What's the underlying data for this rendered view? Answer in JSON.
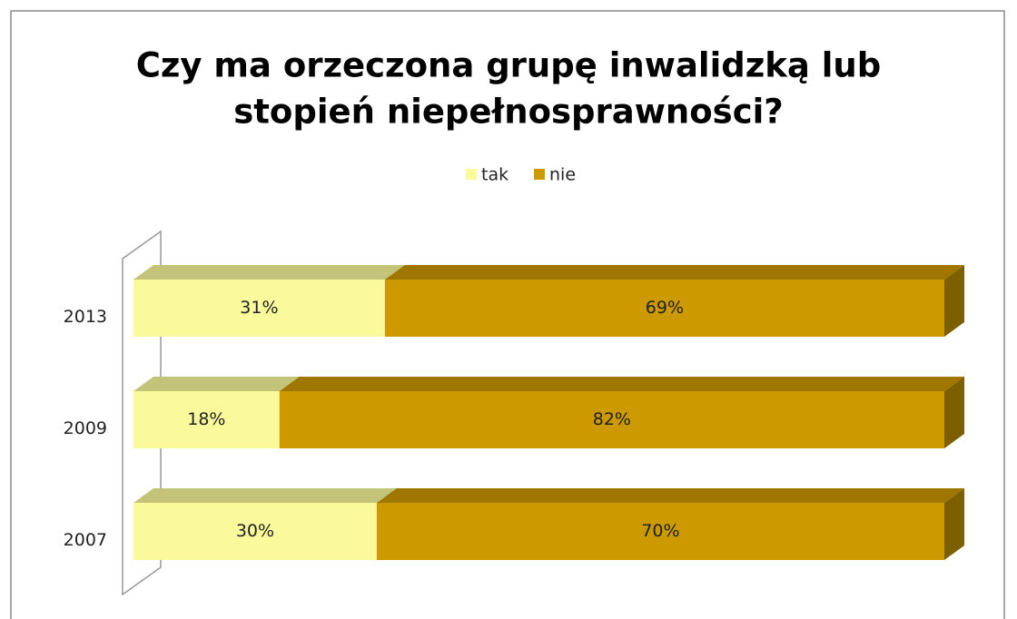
{
  "chart_data": {
    "type": "stacked-bar-100",
    "title": [
      "Czy ma orzeczona grupę inwalidzką lub",
      "stopień niepełnosprawności?"
    ],
    "categories": [
      "2013",
      "2009",
      "2007"
    ],
    "series": [
      {
        "name": "tak",
        "color": "#fafa9c",
        "values": [
          31,
          18,
          30
        ],
        "value_labels": [
          "31%",
          "18%",
          "30%"
        ]
      },
      {
        "name": "nie",
        "color": "#cc9900",
        "values": [
          69,
          82,
          70
        ],
        "value_labels": [
          "69%",
          "82%",
          "70%"
        ]
      }
    ],
    "legend": "top"
  }
}
